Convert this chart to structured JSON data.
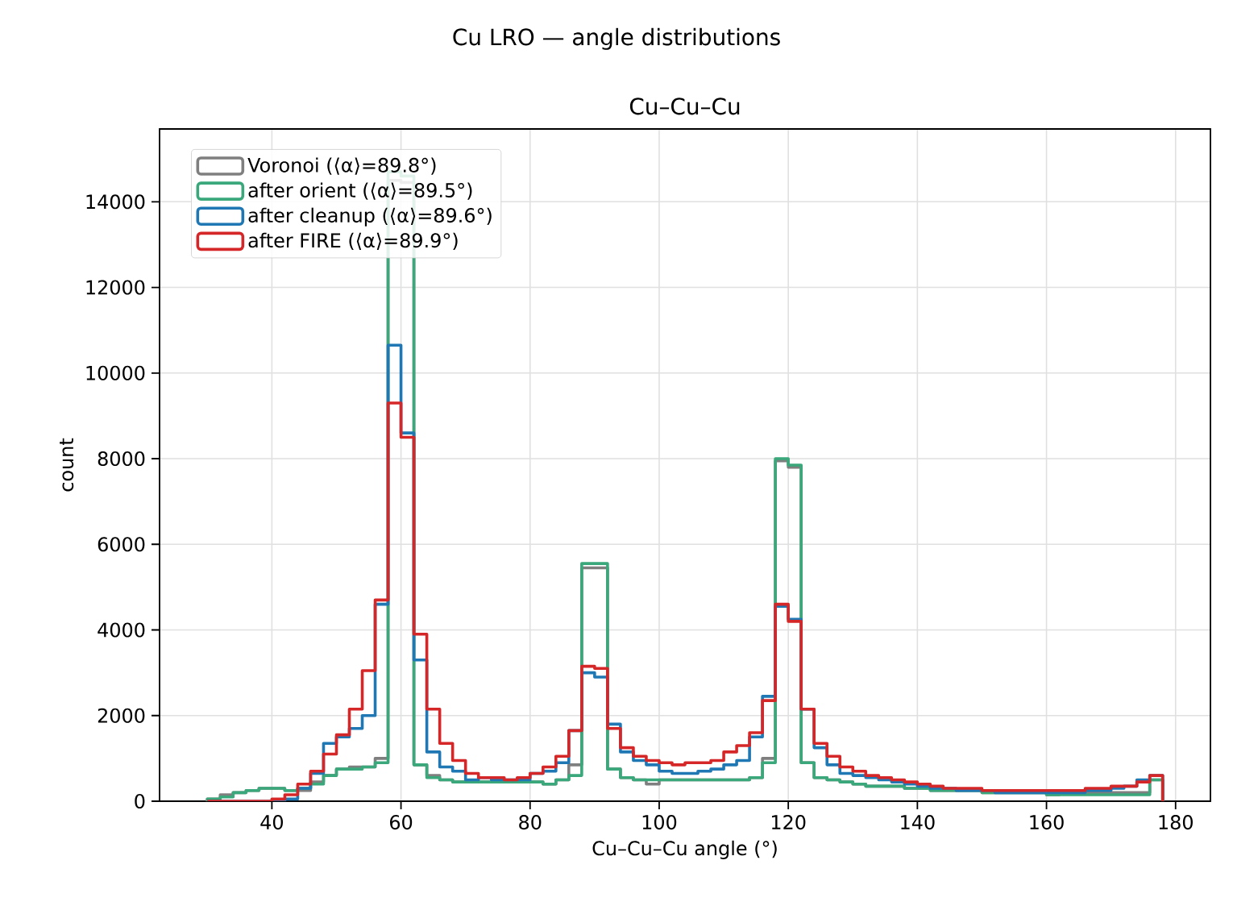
{
  "chart_data": {
    "type": "histogram",
    "title": "Cu LRO — angle distributions",
    "subtitle": "Cu–Cu–Cu",
    "xlabel": "Cu–Cu–Cu angle (°)",
    "ylabel": "count",
    "bins": [
      30,
      32,
      34,
      36,
      38,
      40,
      42,
      44,
      46,
      48,
      50,
      52,
      54,
      56,
      58,
      60,
      62,
      64,
      66,
      68,
      70,
      72,
      74,
      76,
      78,
      80,
      82,
      84,
      86,
      88,
      90,
      92,
      94,
      96,
      98,
      100,
      102,
      104,
      106,
      108,
      110,
      112,
      114,
      116,
      118,
      120,
      122,
      124,
      126,
      128,
      130,
      132,
      134,
      136,
      138,
      140,
      142,
      144,
      146,
      148,
      150,
      152,
      154,
      156,
      158,
      160,
      162,
      164,
      166,
      168,
      170,
      172,
      174,
      176,
      178
    ],
    "series": [
      {
        "name": "Voronoi (⟨α⟩=89.8°)",
        "color": "#7f7f7f",
        "values": [
          50,
          150,
          200,
          250,
          300,
          300,
          250,
          250,
          450,
          600,
          750,
          800,
          800,
          1000,
          14500,
          14450,
          850,
          600,
          500,
          450,
          450,
          450,
          450,
          450,
          450,
          450,
          400,
          500,
          850,
          5450,
          5450,
          750,
          550,
          500,
          400,
          500,
          500,
          500,
          500,
          500,
          500,
          500,
          550,
          1000,
          7950,
          7800,
          900,
          550,
          500,
          450,
          400,
          350,
          350,
          350,
          300,
          300,
          250,
          250,
          250,
          250,
          200,
          200,
          200,
          200,
          200,
          150,
          200,
          200,
          200,
          200,
          200,
          200,
          200,
          500
        ]
      },
      {
        "name": "after orient (⟨α⟩=89.5°)",
        "color": "#3aa87a",
        "values": [
          50,
          100,
          200,
          250,
          300,
          300,
          250,
          300,
          400,
          600,
          750,
          750,
          800,
          900,
          14700,
          14600,
          850,
          550,
          500,
          450,
          450,
          450,
          450,
          450,
          450,
          450,
          400,
          500,
          600,
          5550,
          5550,
          750,
          550,
          500,
          500,
          500,
          500,
          500,
          500,
          500,
          500,
          500,
          550,
          900,
          8000,
          7850,
          900,
          550,
          500,
          450,
          400,
          350,
          350,
          350,
          300,
          300,
          250,
          250,
          250,
          250,
          200,
          200,
          200,
          200,
          200,
          150,
          150,
          150,
          150,
          150,
          150,
          150,
          150,
          500
        ]
      },
      {
        "name": "after cleanup (⟨α⟩=89.6°)",
        "color": "#1f77b4",
        "values": [
          0,
          0,
          0,
          0,
          0,
          0,
          50,
          300,
          650,
          1350,
          1500,
          1700,
          2000,
          4600,
          10650,
          8600,
          3300,
          1150,
          800,
          700,
          500,
          550,
          500,
          500,
          500,
          650,
          700,
          900,
          1650,
          3000,
          2900,
          1800,
          1150,
          950,
          850,
          700,
          650,
          650,
          700,
          750,
          850,
          950,
          1500,
          2450,
          4550,
          4250,
          2150,
          1250,
          850,
          650,
          600,
          550,
          500,
          450,
          400,
          350,
          300,
          300,
          250,
          250,
          250,
          200,
          200,
          200,
          200,
          200,
          200,
          200,
          250,
          250,
          300,
          350,
          500,
          600
        ]
      },
      {
        "name": "after FIRE (⟨α⟩=89.9°)",
        "color": "#d62728",
        "values": [
          0,
          0,
          0,
          0,
          0,
          50,
          150,
          400,
          700,
          1100,
          1550,
          2150,
          3050,
          4700,
          9300,
          8500,
          3900,
          2150,
          1350,
          950,
          650,
          550,
          550,
          500,
          550,
          650,
          800,
          1050,
          1650,
          3150,
          3100,
          1700,
          1250,
          1050,
          950,
          900,
          850,
          900,
          900,
          950,
          1150,
          1300,
          1600,
          2350,
          4600,
          4200,
          2150,
          1350,
          1050,
          800,
          700,
          600,
          550,
          500,
          450,
          400,
          350,
          300,
          300,
          300,
          250,
          250,
          250,
          250,
          250,
          250,
          250,
          250,
          300,
          300,
          350,
          350,
          450,
          600
        ]
      }
    ],
    "xlim": [
      22.6,
      185.4
    ],
    "ylim": [
      0,
      15700
    ],
    "xticks": [
      40,
      60,
      80,
      100,
      120,
      140,
      160,
      180
    ],
    "yticks": [
      0,
      2000,
      4000,
      6000,
      8000,
      10000,
      12000,
      14000
    ],
    "grid": true,
    "legend": "top left"
  }
}
